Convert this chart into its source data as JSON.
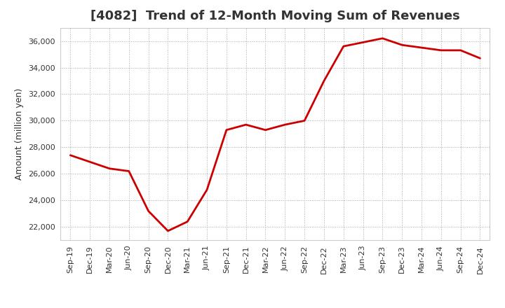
{
  "title": "[4082]  Trend of 12-Month Moving Sum of Revenues",
  "ylabel": "Amount (million yen)",
  "line_color": "#cc0000",
  "background_color": "#ffffff",
  "plot_background_color": "#ffffff",
  "grid_color": "#aaaaaa",
  "x_labels": [
    "Sep-19",
    "Dec-19",
    "Mar-20",
    "Jun-20",
    "Sep-20",
    "Dec-20",
    "Mar-21",
    "Jun-21",
    "Sep-21",
    "Dec-21",
    "Mar-22",
    "Jun-22",
    "Sep-22",
    "Dec-22",
    "Mar-23",
    "Jun-23",
    "Sep-23",
    "Dec-23",
    "Mar-24",
    "Jun-24",
    "Sep-24",
    "Dec-24"
  ],
  "values": [
    27400,
    26900,
    26400,
    26200,
    23200,
    21700,
    22400,
    24800,
    29300,
    29700,
    29300,
    29700,
    30000,
    33000,
    35600,
    35900,
    36200,
    35700,
    35500,
    35300,
    35300,
    34700
  ],
  "ylim": [
    21000,
    37000
  ],
  "yticks": [
    22000,
    24000,
    26000,
    28000,
    30000,
    32000,
    34000,
    36000
  ],
  "title_fontsize": 13,
  "axis_label_fontsize": 9,
  "tick_fontsize": 8,
  "line_width": 2.0,
  "title_color": "#333333",
  "tick_color": "#333333"
}
